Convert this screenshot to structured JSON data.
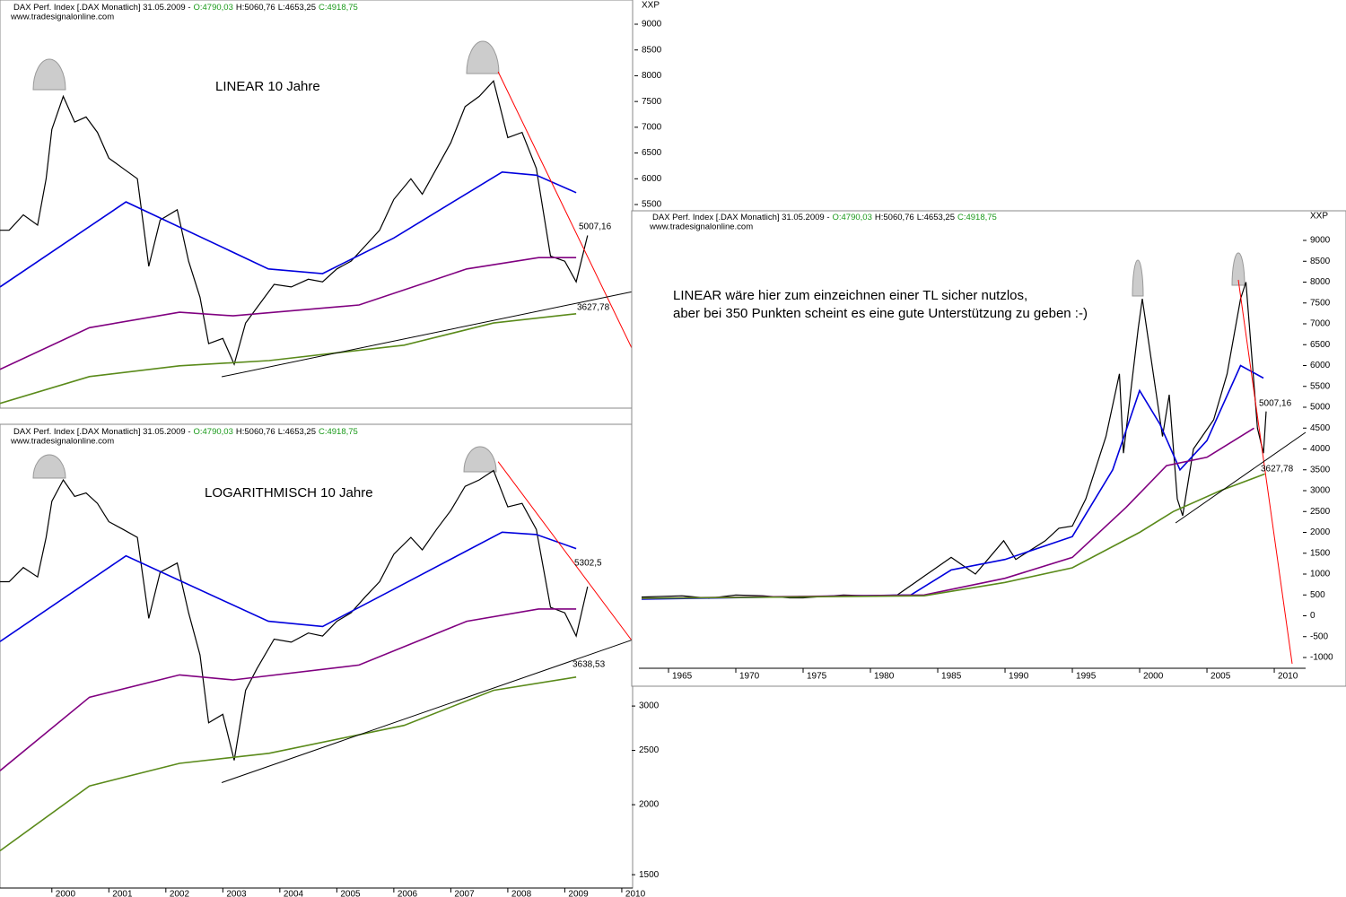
{
  "chart_data": [
    {
      "type": "line",
      "header": {
        "name": "DAX Perf. Index [.DAX  Monatlich] 31.05.2009 -",
        "open": "O:4790,03",
        "high": "H:5060,76",
        "low": "L:4653,25",
        "close": "C:4918,75"
      },
      "source": "www.tradesignalonline.com",
      "y_axis_label": "XXP",
      "annotation": "LINEAR  10 Jahre",
      "log": false,
      "xlim": [
        1999.09,
        2010.19
      ],
      "ylim": [
        1548,
        9470
      ],
      "yticks": [
        5500,
        6000,
        6500,
        7000,
        7500,
        8000,
        8500,
        9000
      ],
      "series": [
        {
          "color": "#000000",
          "x": [
            1999.0,
            1999.25,
            1999.5,
            1999.75,
            1999.9,
            2000.0,
            2000.2,
            2000.4,
            2000.6,
            2000.8,
            2001.0,
            2001.25,
            2001.5,
            2001.7,
            2001.9,
            2002.2,
            2002.4,
            2002.6,
            2002.75,
            2003.0,
            2003.2,
            2003.4,
            2003.6,
            2003.9,
            2004.2,
            2004.5,
            2004.75,
            2005.0,
            2005.25,
            2005.5,
            2005.75,
            2006.0,
            2006.3,
            2006.5,
            2006.75,
            2007.0,
            2007.25,
            2007.5,
            2007.75,
            2008.0,
            2008.25,
            2008.5,
            2008.75,
            2009.0,
            2009.2,
            2009.4
          ],
          "values": [
            5000,
            5000,
            5300,
            5100,
            6000,
            6960,
            7600,
            7100,
            7200,
            6900,
            6400,
            6200,
            6000,
            4300,
            5200,
            5400,
            4400,
            3700,
            2800,
            2900,
            2400,
            3200,
            3500,
            3950,
            3900,
            4050,
            4000,
            4250,
            4400,
            4700,
            5000,
            5600,
            6000,
            5700,
            6200,
            6700,
            7400,
            7600,
            7900,
            6800,
            6900,
            6200,
            4500,
            4400,
            4000,
            4900
          ]
        },
        {
          "color": "#0000dd",
          "x": [
            1999.09,
            2001.3,
            2003.8,
            2004.75,
            2006.0,
            2007.9,
            2008.5,
            2009.2
          ],
          "values": [
            3900,
            5550,
            4250,
            4160,
            4850,
            6130,
            6070,
            5730
          ]
        },
        {
          "color": "#800080",
          "x": [
            1999.09,
            2000.66,
            2002.24,
            2003.18,
            2005.39,
            2007.28,
            2008.54,
            2009.2
          ],
          "values": [
            2300,
            3110,
            3410,
            3340,
            3550,
            4250,
            4470,
            4470
          ]
        },
        {
          "color": "#5a8a1a",
          "x": [
            1999.09,
            2000.66,
            2002.24,
            2003.81,
            2006.18,
            2007.75,
            2009.2
          ],
          "values": [
            1640,
            2160,
            2370,
            2470,
            2770,
            3200,
            3380
          ]
        }
      ],
      "trendlines": [
        {
          "color": "#ff0000",
          "x": [
            2007.83,
            2010.19
          ],
          "values": [
            8077,
            2680
          ],
          "label": "5007,16"
        },
        {
          "color": "#000000",
          "x": [
            2002.98,
            2010.19
          ],
          "values": [
            2157,
            3810
          ],
          "label": "3627,78"
        }
      ]
    },
    {
      "type": "line",
      "header": {
        "name": "DAX Perf. Index [.DAX  Monatlich] 31.05.2009 -",
        "open": "O:4790,03",
        "high": "H:5060,76",
        "low": "L:4653,25",
        "close": "C:4918,75"
      },
      "source": "www.tradesignalonline.com",
      "annotation": "LOGARITHMISCH  10 Jahre",
      "log": true,
      "xlim": [
        1999.09,
        2010.19
      ],
      "ylim": [
        1420,
        9550
      ],
      "yticks": [
        1500,
        2000,
        2500,
        3000
      ],
      "xticks": [
        2000,
        2001,
        2002,
        2003,
        2004,
        2005,
        2006,
        2007,
        2008,
        2009,
        2010
      ],
      "series": [
        {
          "color": "#000000",
          "x": [
            1999.0,
            1999.25,
            1999.5,
            1999.75,
            1999.9,
            2000.0,
            2000.2,
            2000.4,
            2000.6,
            2000.8,
            2001.0,
            2001.25,
            2001.5,
            2001.7,
            2001.9,
            2002.2,
            2002.4,
            2002.6,
            2002.75,
            2003.0,
            2003.2,
            2003.4,
            2003.6,
            2003.9,
            2004.2,
            2004.5,
            2004.75,
            2005.0,
            2005.25,
            2005.5,
            2005.75,
            2006.0,
            2006.3,
            2006.5,
            2006.75,
            2007.0,
            2007.25,
            2007.5,
            2007.75,
            2008.0,
            2008.25,
            2008.5,
            2008.75,
            2009.0,
            2009.2,
            2009.4
          ],
          "values": [
            5000,
            5000,
            5300,
            5100,
            6000,
            6960,
            7600,
            7100,
            7200,
            6900,
            6400,
            6200,
            6000,
            4300,
            5200,
            5400,
            4400,
            3700,
            2800,
            2900,
            2400,
            3200,
            3500,
            3950,
            3900,
            4050,
            4000,
            4250,
            4400,
            4700,
            5000,
            5600,
            6000,
            5700,
            6200,
            6700,
            7400,
            7600,
            7900,
            6800,
            6900,
            6200,
            4500,
            4400,
            4000,
            4900
          ]
        },
        {
          "color": "#0000dd",
          "x": [
            1999.09,
            2001.3,
            2003.8,
            2004.75,
            2006.0,
            2007.9,
            2008.5,
            2009.2
          ],
          "values": [
            3910,
            5560,
            4250,
            4160,
            4850,
            6130,
            6070,
            5730
          ]
        },
        {
          "color": "#800080",
          "x": [
            1999.09,
            2000.66,
            2002.24,
            2003.18,
            2005.39,
            2007.28,
            2008.54,
            2009.2
          ],
          "values": [
            2300,
            3110,
            3410,
            3340,
            3550,
            4250,
            4470,
            4470
          ]
        },
        {
          "color": "#5a8a1a",
          "x": [
            1999.09,
            2000.66,
            2002.24,
            2003.81,
            2006.18,
            2007.75,
            2009.2
          ],
          "values": [
            1655,
            2160,
            2370,
            2470,
            2770,
            3200,
            3380
          ]
        }
      ],
      "trendlines": [
        {
          "color": "#ff0000",
          "x": [
            2007.83,
            2010.19
          ],
          "values": [
            8190,
            3910
          ],
          "label": "5302,5"
        },
        {
          "color": "#000000",
          "x": [
            2002.98,
            2010.19
          ],
          "values": [
            2190,
            3940
          ],
          "label": "3638,53"
        }
      ]
    },
    {
      "type": "line",
      "header": {
        "name": "DAX Perf. Index [.DAX  Monatlich] 31.05.2009 -",
        "open": "O:4790,03",
        "high": "H:5060,76",
        "low": "L:4653,25",
        "close": "C:4918,75"
      },
      "source": "www.tradesignalonline.com",
      "y_axis_label": "XXP",
      "annotation": [
        "LINEAR wäre hier zum einzeichnen einer TL sicher nutzlos,",
        "aber bei 350 Punkten scheint es eine gute Unterstützung zu geben :-)"
      ],
      "log": false,
      "xlim": [
        1962.8,
        2012.33
      ],
      "ylim": [
        -1258,
        9710
      ],
      "yticks": [
        -1000,
        -500,
        0,
        500,
        1000,
        1500,
        2000,
        2500,
        3000,
        3500,
        4000,
        4500,
        5000,
        5500,
        6000,
        6500,
        7000,
        7500,
        8000,
        8500,
        9000
      ],
      "xticks": [
        1965,
        1970,
        1975,
        1980,
        1985,
        1990,
        1995,
        2000,
        2005,
        2010
      ],
      "series": [
        {
          "color": "#000000",
          "x": [
            1963,
            1966,
            1968,
            1970,
            1972,
            1974,
            1975,
            1978,
            1980,
            1982,
            1984,
            1986,
            1987.8,
            1989.9,
            1990.8,
            1993,
            1994,
            1995,
            1996,
            1997.5,
            1998.5,
            1998.8,
            1999.9,
            2000.2,
            2001.7,
            2002.2,
            2002.8,
            2003.2,
            2004,
            2005.5,
            2006.5,
            2007.5,
            2007.9,
            2008.75,
            2009.2,
            2009.4
          ],
          "values": [
            450,
            480,
            420,
            500,
            480,
            430,
            430,
            500,
            480,
            500,
            950,
            1400,
            1000,
            1800,
            1350,
            1800,
            2100,
            2150,
            2800,
            4300,
            5800,
            3900,
            6900,
            7600,
            4300,
            5300,
            2800,
            2400,
            4000,
            4700,
            5800,
            7600,
            8000,
            4500,
            3900,
            4900
          ]
        },
        {
          "color": "#0000dd",
          "x": [
            1963,
            1983,
            1986,
            1990,
            1995,
            1998,
            2000,
            2001.5,
            2003,
            2005,
            2007.5,
            2009.2
          ],
          "values": [
            400,
            500,
            1100,
            1350,
            1900,
            3500,
            5400,
            4600,
            3500,
            4200,
            6000,
            5700
          ]
        },
        {
          "color": "#800080",
          "x": [
            1963,
            1984,
            1990,
            1995,
            1999,
            2002,
            2005,
            2008.5
          ],
          "values": [
            420,
            500,
            900,
            1400,
            2600,
            3600,
            3800,
            4500
          ]
        },
        {
          "color": "#5a8a1a",
          "x": [
            1963,
            1984,
            1990,
            1995,
            2000,
            2002.5,
            2006,
            2009.3
          ],
          "values": [
            420,
            480,
            800,
            1150,
            2000,
            2500,
            3000,
            3400
          ]
        }
      ],
      "trendlines": [
        {
          "color": "#ff0000",
          "x": [
            2007.33,
            2011.33
          ],
          "values": [
            8054,
            -1150
          ],
          "label": "5007,16"
        },
        {
          "color": "#000000",
          "x": [
            2002.67,
            2012.33
          ],
          "values": [
            2226,
            4398
          ],
          "label": "3627,78"
        }
      ]
    }
  ]
}
